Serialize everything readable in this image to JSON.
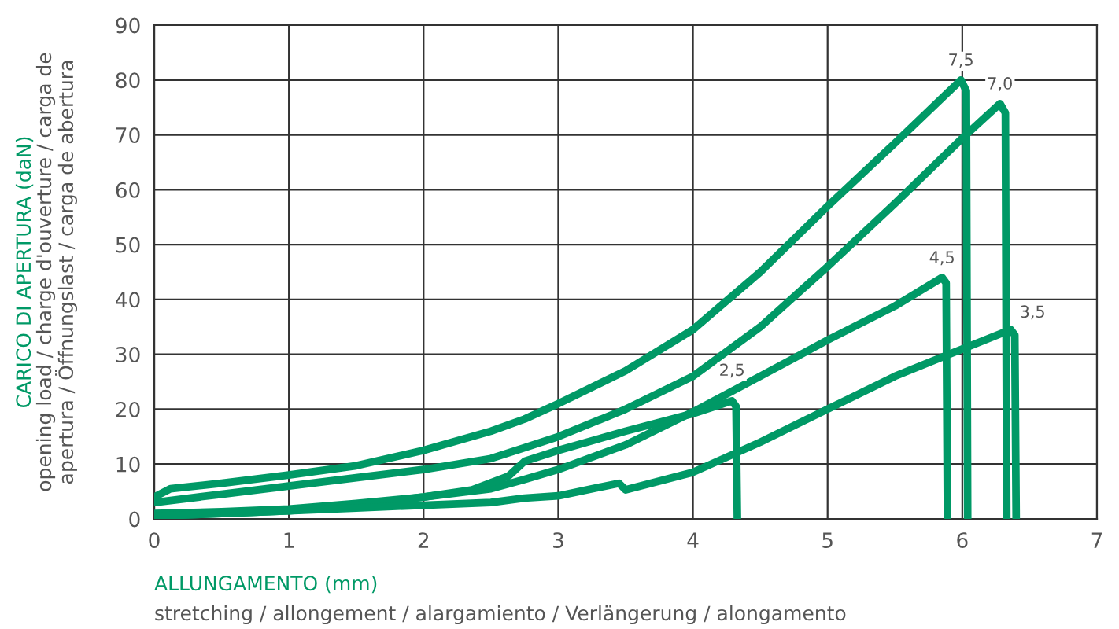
{
  "chart_data": {
    "type": "line",
    "xlabel": "ALLUNGAMENTO (mm)\nstretching / allongement / alargamiento / Verlängerung / alongamento",
    "ylabel": "CARICO DI APERTURA (daN)\nopening load / charge d'ouverture / carga de\napertura / Öffnungslast / carga de abertura",
    "xlim": [
      0,
      7
    ],
    "xticks": [
      0,
      1,
      2,
      3,
      4,
      5,
      6,
      7
    ],
    "ylim": [
      0,
      90
    ],
    "yticks": [
      0,
      10,
      20,
      30,
      40,
      50,
      60,
      70,
      80,
      90
    ],
    "grid": true,
    "line_style": "solid",
    "marker": "none",
    "series": [
      {
        "color": "#009966",
        "x": [
          0,
          0.12,
          0.5,
          1,
          1.5,
          2,
          2.5,
          2.75,
          3,
          3.5,
          4,
          4.5,
          5,
          5.5,
          5.99,
          6.03,
          6.04
        ],
        "values": [
          4,
          5.5,
          6.5,
          8,
          9.7,
          12.5,
          16,
          18.2,
          21,
          27,
          34.5,
          45,
          57,
          68.5,
          80,
          78,
          0
        ]
      },
      {
        "color": "#009966",
        "x": [
          0,
          0.5,
          1,
          1.5,
          2,
          2.5,
          2.75,
          3,
          3.5,
          4,
          4.5,
          5,
          5.5,
          6,
          6.28,
          6.32,
          6.33
        ],
        "values": [
          3,
          4.5,
          6,
          7.5,
          9,
          11,
          13,
          15,
          20,
          26,
          35,
          46,
          57.5,
          69.4,
          75.7,
          74,
          0
        ]
      },
      {
        "color": "#009966",
        "x": [
          0,
          0.5,
          1,
          1.5,
          2,
          2.5,
          2.75,
          3,
          3.5,
          4,
          4.5,
          5,
          5.5,
          5.85,
          5.88,
          5.89
        ],
        "values": [
          1,
          1.3,
          1.8,
          2.8,
          4,
          5.5,
          7.2,
          9,
          13.5,
          19.5,
          26,
          32.6,
          38.8,
          44,
          43,
          0
        ]
      },
      {
        "color": "#009966",
        "x": [
          0,
          0.5,
          1,
          1.5,
          2,
          2.36,
          2.63,
          2.75,
          3,
          3.5,
          4,
          4.29,
          4.32,
          4.33
        ],
        "values": [
          0.5,
          1,
          1.5,
          2.5,
          4,
          5.3,
          7.8,
          10.5,
          12.5,
          16,
          19.2,
          21.5,
          20.5,
          0
        ]
      },
      {
        "color": "#009966",
        "x": [
          0,
          0.5,
          1,
          1.5,
          2,
          2.5,
          2.75,
          3,
          3.45,
          3.5,
          4,
          4.5,
          5,
          5.5,
          5.9,
          6.36,
          6.39,
          6.4
        ],
        "values": [
          0.5,
          1,
          1.5,
          2,
          2.5,
          3,
          3.8,
          4.2,
          6.5,
          5.3,
          8.5,
          14,
          20,
          26,
          30,
          34.5,
          33.5,
          0
        ]
      }
    ],
    "annotations": [
      {
        "text": "7,5",
        "x": 5.99,
        "y": 80
      },
      {
        "text": "7,0",
        "x": 6.28,
        "y": 75.7
      },
      {
        "text": "4,5",
        "x": 5.85,
        "y": 44
      },
      {
        "text": "2,5",
        "x": 4.29,
        "y": 21.5
      },
      {
        "text": "3,5",
        "x": 6.36,
        "y": 34.5
      }
    ]
  }
}
